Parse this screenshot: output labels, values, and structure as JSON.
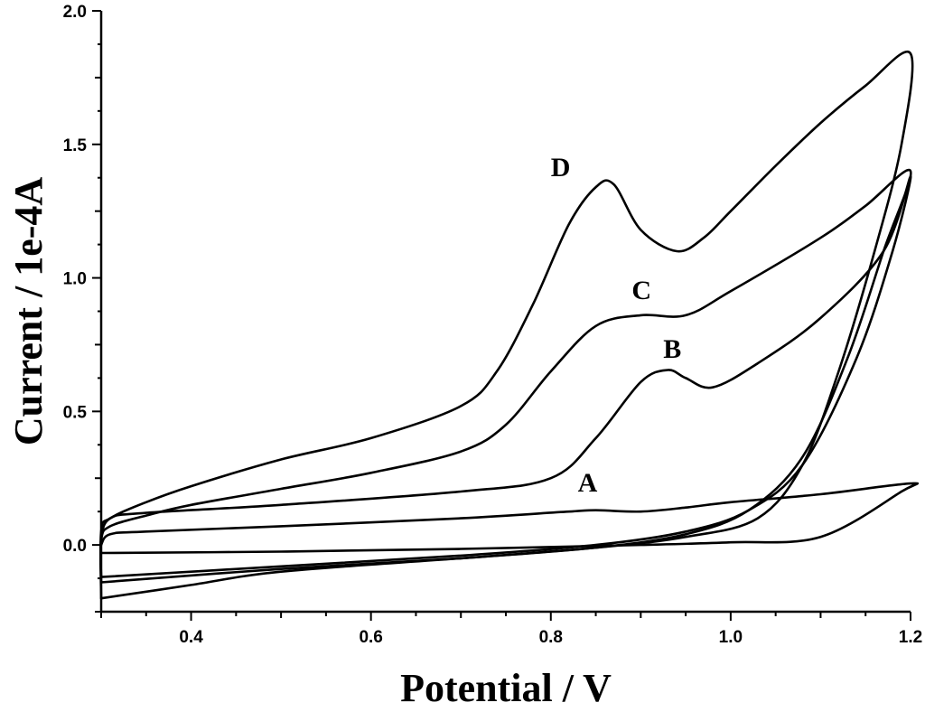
{
  "chart_data": {
    "type": "line",
    "title": "",
    "xlabel": "Potential / V",
    "ylabel": "Current / 1e-4A",
    "xlim": [
      0.3,
      1.2
    ],
    "ylim": [
      -0.25,
      2.0
    ],
    "grid": false,
    "legend": "none",
    "x_ticks": [
      0.4,
      0.6,
      0.8,
      1.0,
      1.2
    ],
    "x_tick_labels": [
      "0.4",
      "0.6",
      "0.8",
      "1.0",
      "1.2"
    ],
    "y_ticks": [
      0.0,
      0.5,
      1.0,
      1.5,
      2.0
    ],
    "y_tick_labels": [
      "0.0",
      "0.5",
      "1.0",
      "1.5",
      "2.0"
    ],
    "series": [
      {
        "name": "A",
        "label_pos": [
          0.83,
          0.2
        ],
        "points": [
          [
            0.3,
            -0.03
          ],
          [
            0.5,
            -0.025
          ],
          [
            0.7,
            -0.015
          ],
          [
            0.9,
            0.0
          ],
          [
            1.0,
            0.01
          ],
          [
            1.1,
            0.03
          ],
          [
            1.19,
            0.2
          ],
          [
            1.2,
            0.23
          ],
          [
            1.1,
            0.19
          ],
          [
            1.0,
            0.16
          ],
          [
            0.95,
            0.14
          ],
          [
            0.9,
            0.125
          ],
          [
            0.85,
            0.13
          ],
          [
            0.82,
            0.125
          ],
          [
            0.7,
            0.1
          ],
          [
            0.5,
            0.07
          ],
          [
            0.35,
            0.05
          ],
          [
            0.31,
            0.04
          ],
          [
            0.3,
            0.0
          ],
          [
            0.3,
            -0.03
          ]
        ]
      },
      {
        "name": "B",
        "label_pos": [
          0.925,
          0.7
        ],
        "points": [
          [
            0.3,
            -0.12
          ],
          [
            0.5,
            -0.08
          ],
          [
            0.7,
            -0.04
          ],
          [
            0.85,
            0.0
          ],
          [
            0.95,
            0.05
          ],
          [
            1.02,
            0.13
          ],
          [
            1.08,
            0.3
          ],
          [
            1.14,
            0.7
          ],
          [
            1.18,
            1.1
          ],
          [
            1.2,
            1.38
          ],
          [
            1.17,
            1.1
          ],
          [
            1.1,
            0.85
          ],
          [
            1.03,
            0.68
          ],
          [
            0.98,
            0.59
          ],
          [
            0.95,
            0.625
          ],
          [
            0.93,
            0.655
          ],
          [
            0.9,
            0.61
          ],
          [
            0.85,
            0.4
          ],
          [
            0.8,
            0.25
          ],
          [
            0.7,
            0.2
          ],
          [
            0.5,
            0.15
          ],
          [
            0.35,
            0.12
          ],
          [
            0.31,
            0.1
          ],
          [
            0.3,
            0.02
          ],
          [
            0.3,
            -0.12
          ]
        ]
      },
      {
        "name": "C",
        "label_pos": [
          0.89,
          0.92
        ],
        "points": [
          [
            0.3,
            -0.14
          ],
          [
            0.5,
            -0.09
          ],
          [
            0.7,
            -0.05
          ],
          [
            0.85,
            -0.01
          ],
          [
            0.95,
            0.04
          ],
          [
            1.02,
            0.13
          ],
          [
            1.08,
            0.33
          ],
          [
            1.13,
            0.7
          ],
          [
            1.17,
            1.1
          ],
          [
            1.2,
            1.4
          ],
          [
            1.15,
            1.27
          ],
          [
            1.1,
            1.15
          ],
          [
            1.0,
            0.95
          ],
          [
            0.95,
            0.86
          ],
          [
            0.9,
            0.86
          ],
          [
            0.85,
            0.82
          ],
          [
            0.8,
            0.65
          ],
          [
            0.75,
            0.45
          ],
          [
            0.7,
            0.35
          ],
          [
            0.6,
            0.27
          ],
          [
            0.5,
            0.21
          ],
          [
            0.4,
            0.15
          ],
          [
            0.35,
            0.11
          ],
          [
            0.31,
            0.07
          ],
          [
            0.3,
            0.02
          ],
          [
            0.3,
            -0.14
          ]
        ]
      },
      {
        "name": "D",
        "label_pos": [
          0.8,
          1.38
        ],
        "points": [
          [
            0.3,
            -0.2
          ],
          [
            0.4,
            -0.15
          ],
          [
            0.5,
            -0.1
          ],
          [
            0.7,
            -0.05
          ],
          [
            0.85,
            -0.01
          ],
          [
            0.95,
            0.03
          ],
          [
            1.03,
            0.1
          ],
          [
            1.08,
            0.3
          ],
          [
            1.12,
            0.65
          ],
          [
            1.16,
            1.1
          ],
          [
            1.19,
            1.5
          ],
          [
            1.2,
            1.84
          ],
          [
            1.15,
            1.72
          ],
          [
            1.1,
            1.58
          ],
          [
            1.05,
            1.42
          ],
          [
            1.0,
            1.25
          ],
          [
            0.97,
            1.15
          ],
          [
            0.94,
            1.1
          ],
          [
            0.9,
            1.18
          ],
          [
            0.87,
            1.35
          ],
          [
            0.85,
            1.34
          ],
          [
            0.82,
            1.2
          ],
          [
            0.78,
            0.9
          ],
          [
            0.74,
            0.65
          ],
          [
            0.7,
            0.52
          ],
          [
            0.6,
            0.4
          ],
          [
            0.5,
            0.32
          ],
          [
            0.4,
            0.22
          ],
          [
            0.35,
            0.16
          ],
          [
            0.31,
            0.1
          ],
          [
            0.3,
            0.05
          ],
          [
            0.3,
            -0.2
          ]
        ]
      }
    ]
  }
}
